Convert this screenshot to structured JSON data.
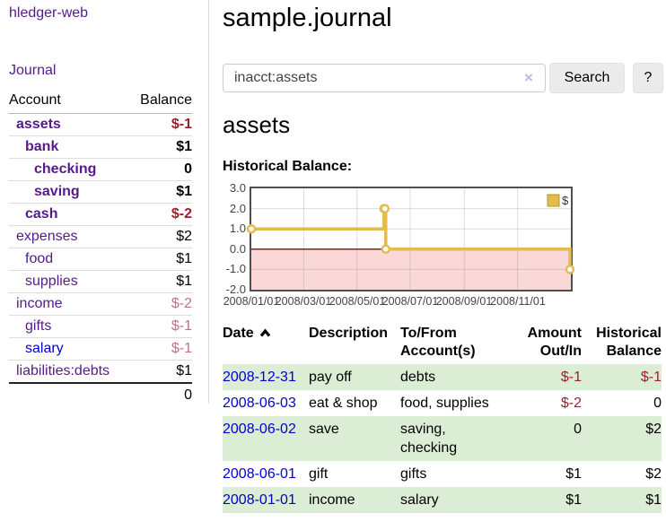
{
  "app": {
    "title": "hledger-web"
  },
  "sidebar": {
    "journal_label": "Journal",
    "accounts": {
      "header_account": "Account",
      "header_balance": "Balance",
      "rows": [
        {
          "name": "assets",
          "depth": 0,
          "bold": true,
          "balance": "$-1",
          "negative": true
        },
        {
          "name": "bank",
          "depth": 1,
          "bold": true,
          "balance": "$1"
        },
        {
          "name": "checking",
          "depth": 2,
          "bold": true,
          "balance": "0"
        },
        {
          "name": "saving",
          "depth": 2,
          "bold": true,
          "balance": "$1"
        },
        {
          "name": "cash",
          "depth": 1,
          "bold": true,
          "balance": "$-2",
          "negative": true
        },
        {
          "name": "expenses",
          "depth": 0,
          "balance": "$2"
        },
        {
          "name": "food",
          "depth": 1,
          "balance": "$1"
        },
        {
          "name": "supplies",
          "depth": 1,
          "balance": "$1"
        },
        {
          "name": "income",
          "depth": 0,
          "balance": "$-2",
          "faded": true
        },
        {
          "name": "gifts",
          "depth": 1,
          "balance": "$-1",
          "faded": true
        },
        {
          "name": "salary",
          "depth": 1,
          "blue": true,
          "balance": "$-1",
          "faded": true
        },
        {
          "name": "liabilities:debts",
          "depth": 0,
          "balance": "$1"
        }
      ],
      "total": "0"
    }
  },
  "header": {
    "title": "sample.journal"
  },
  "search": {
    "value": "inacct:assets",
    "clear_icon": "×",
    "button_label": "Search",
    "help_label": "?"
  },
  "account_page": {
    "title": "assets",
    "chart_heading": "Historical Balance:"
  },
  "chart_data": {
    "type": "line",
    "style": "step-after",
    "title": "Historical Balance:",
    "x_domain": [
      "2008-01-01",
      "2009-01-01"
    ],
    "ylim": [
      -2,
      3
    ],
    "yticks": [
      "3.0",
      "2.0",
      "1.0",
      "0.0",
      "-1.0",
      "-2.0"
    ],
    "xticks": [
      "2008/01/01",
      "2008/03/01",
      "2008/05/01",
      "2008/07/01",
      "2008/09/01",
      "2008/11/01"
    ],
    "series": [
      {
        "name": "$",
        "color": "#e3bc4f",
        "points": [
          [
            "2008-01-01",
            1
          ],
          [
            "2008-06-01",
            2
          ],
          [
            "2008-06-02",
            2
          ],
          [
            "2008-06-03",
            0
          ],
          [
            "2008-12-31",
            -1
          ]
        ]
      }
    ],
    "legend": {
      "label": "$",
      "position": "top-right",
      "swatch_color": "#e3bc4f"
    },
    "negative_region_color": "#fbd8d8",
    "zero_line_color": "#7c0d0d",
    "grid": true
  },
  "register": {
    "columns": [
      {
        "l1": "Date",
        "sort": true
      },
      {
        "l1": "Description"
      },
      {
        "l1": "To/From",
        "l2": "Account(s)"
      },
      {
        "l1": "Amount",
        "l2": "Out/In",
        "align": "right"
      },
      {
        "l1": "Historical",
        "l2": "Balance",
        "align": "right"
      }
    ],
    "rows": [
      {
        "date": "2008-12-31",
        "description": "pay off",
        "accounts": "debts",
        "amount": "$-1",
        "amount_negative": true,
        "balance": "$-1",
        "balance_negative": true,
        "shaded": true
      },
      {
        "date": "2008-06-03",
        "description": "eat & shop",
        "accounts": "food, supplies",
        "amount": "$-2",
        "amount_negative": true,
        "balance": "0",
        "shaded": false
      },
      {
        "date": "2008-06-02",
        "description": "save",
        "accounts": "saving, checking",
        "amount": "0",
        "balance": "$2",
        "shaded": true
      },
      {
        "date": "2008-06-01",
        "description": "gift",
        "accounts": "gifts",
        "amount": "$1",
        "balance": "$2",
        "shaded": false
      },
      {
        "date": "2008-01-01",
        "description": "income",
        "accounts": "salary",
        "amount": "$1",
        "balance": "$1",
        "shaded": true
      }
    ]
  }
}
